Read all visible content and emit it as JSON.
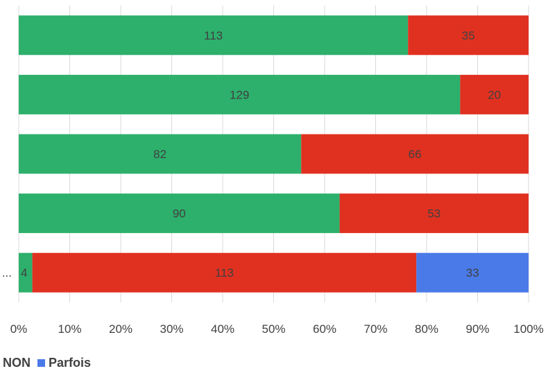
{
  "chart_data": {
    "type": "bar",
    "orientation": "horizontal",
    "stacked": true,
    "normalized": true,
    "categories": [
      "",
      "",
      "",
      "",
      "..."
    ],
    "series": [
      {
        "name": "",
        "color": "#2db06c",
        "values": [
          113,
          129,
          82,
          90,
          4
        ]
      },
      {
        "name": "NON",
        "color": "#e03120",
        "values": [
          35,
          20,
          66,
          53,
          113
        ]
      },
      {
        "name": "Parfois",
        "color": "#4a7ae8",
        "values": [
          0,
          0,
          0,
          0,
          33
        ]
      }
    ],
    "x_ticks": [
      "0%",
      "10%",
      "20%",
      "30%",
      "40%",
      "50%",
      "60%",
      "70%",
      "80%",
      "90%",
      "100%"
    ],
    "xlim": [
      0,
      100
    ],
    "grid": true,
    "legend_position": "bottom",
    "title": "",
    "xlabel": "",
    "ylabel": ""
  }
}
